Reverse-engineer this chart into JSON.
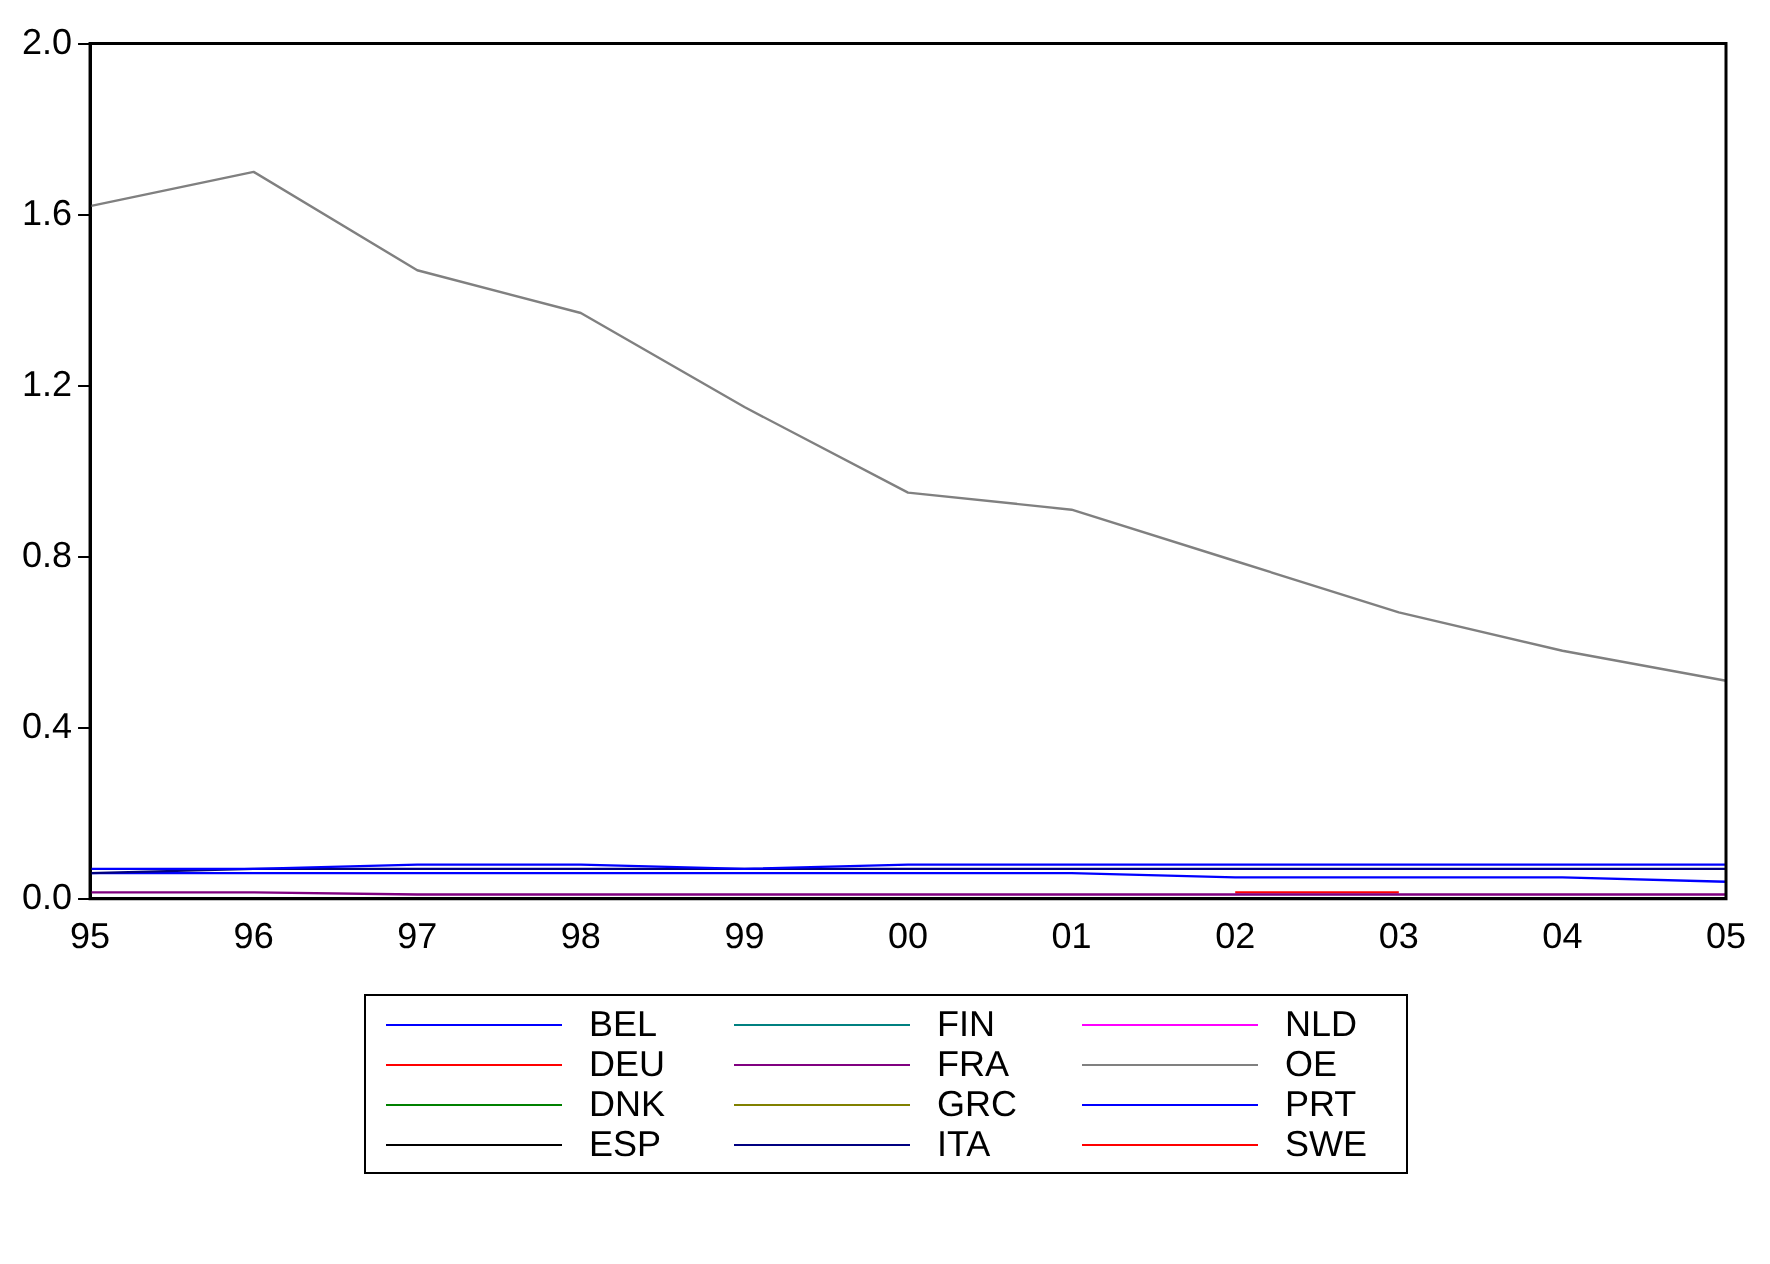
{
  "chart_data": {
    "type": "line",
    "categories": [
      "95",
      "96",
      "97",
      "98",
      "99",
      "00",
      "01",
      "02",
      "03",
      "04",
      "05"
    ],
    "ylim": [
      0,
      2
    ],
    "yticks": [
      {
        "value": 0,
        "label": "0.0"
      },
      {
        "value": 0.4,
        "label": "0.4"
      },
      {
        "value": 0.8,
        "label": "0.8"
      },
      {
        "value": 1.2,
        "label": "1.2"
      },
      {
        "value": 1.6,
        "label": "1.6"
      },
      {
        "value": 2,
        "label": "2.0"
      }
    ],
    "grid": false,
    "legend": "bottom",
    "marker": "none",
    "line_style": "solid",
    "series": [
      {
        "name": "BEL",
        "color": "#0000ff",
        "values": [
          0.07,
          0.07,
          0.08,
          0.08,
          0.07,
          0.08,
          0.08,
          0.08,
          0.08,
          0.08,
          0.08
        ]
      },
      {
        "name": "DEU",
        "color": "#ff0000",
        "values": [
          null,
          null,
          null,
          null,
          null,
          null,
          null,
          null,
          null,
          null,
          null
        ]
      },
      {
        "name": "DNK",
        "color": "#008000",
        "values": [
          null,
          null,
          null,
          null,
          null,
          null,
          null,
          null,
          null,
          null,
          null
        ]
      },
      {
        "name": "ESP",
        "color": "#000000",
        "values": [
          null,
          null,
          null,
          null,
          null,
          null,
          null,
          null,
          null,
          null,
          null
        ]
      },
      {
        "name": "FIN",
        "color": "#008080",
        "values": [
          null,
          null,
          null,
          null,
          null,
          null,
          null,
          null,
          null,
          null,
          null
        ]
      },
      {
        "name": "FRA",
        "color": "#800080",
        "values": [
          0.015,
          0.015,
          0.01,
          0.01,
          0.01,
          0.01,
          0.01,
          0.01,
          0.01,
          0.01,
          0.01
        ]
      },
      {
        "name": "GRC",
        "color": "#808000",
        "values": [
          null,
          null,
          null,
          null,
          null,
          null,
          null,
          null,
          null,
          null,
          null
        ]
      },
      {
        "name": "ITA",
        "color": "#000080",
        "values": [
          0.06,
          0.07,
          0.07,
          0.07,
          0.07,
          0.07,
          0.07,
          0.07,
          0.07,
          0.07,
          0.07
        ]
      },
      {
        "name": "NLD",
        "color": "#ff00ff",
        "values": [
          null,
          null,
          null,
          null,
          null,
          null,
          null,
          null,
          null,
          null,
          null
        ]
      },
      {
        "name": "OE",
        "color": "#808080",
        "values": [
          1.62,
          1.7,
          1.47,
          1.37,
          1.15,
          0.95,
          0.91,
          0.79,
          0.67,
          0.58,
          0.51
        ]
      },
      {
        "name": "PRT",
        "color": "#0000ff",
        "values": [
          0.06,
          0.06,
          0.06,
          0.06,
          0.06,
          0.06,
          0.06,
          0.05,
          0.05,
          0.05,
          0.04
        ]
      },
      {
        "name": "SWE",
        "color": "#ff0000",
        "values": [
          null,
          null,
          null,
          null,
          null,
          null,
          null,
          0.015,
          0.015,
          null,
          null
        ]
      }
    ]
  }
}
